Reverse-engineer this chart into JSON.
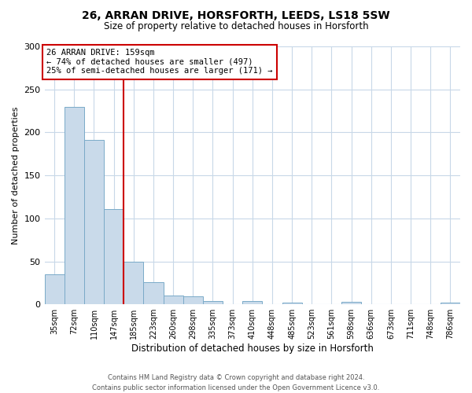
{
  "title1": "26, ARRAN DRIVE, HORSFORTH, LEEDS, LS18 5SW",
  "title2": "Size of property relative to detached houses in Horsforth",
  "xlabel": "Distribution of detached houses by size in Horsforth",
  "ylabel": "Number of detached properties",
  "bin_labels": [
    "35sqm",
    "72sqm",
    "110sqm",
    "147sqm",
    "185sqm",
    "223sqm",
    "260sqm",
    "298sqm",
    "335sqm",
    "373sqm",
    "410sqm",
    "448sqm",
    "485sqm",
    "523sqm",
    "561sqm",
    "598sqm",
    "636sqm",
    "673sqm",
    "711sqm",
    "748sqm",
    "786sqm"
  ],
  "bar_values": [
    35,
    230,
    191,
    111,
    50,
    26,
    10,
    9,
    4,
    0,
    4,
    0,
    2,
    0,
    0,
    3,
    0,
    0,
    0,
    0,
    2
  ],
  "bar_color": "#c9daea",
  "bar_edge_color": "#7aaac8",
  "vline_color": "#cc0000",
  "annotation_title": "26 ARRAN DRIVE: 159sqm",
  "annotation_line1": "← 74% of detached houses are smaller (497)",
  "annotation_line2": "25% of semi-detached houses are larger (171) →",
  "annotation_box_color": "#cc0000",
  "ylim": [
    0,
    300
  ],
  "yticks": [
    0,
    50,
    100,
    150,
    200,
    250,
    300
  ],
  "footer1": "Contains HM Land Registry data © Crown copyright and database right 2024.",
  "footer2": "Contains public sector information licensed under the Open Government Licence v3.0.",
  "bg_color": "#ffffff",
  "grid_color": "#c8d8e8"
}
